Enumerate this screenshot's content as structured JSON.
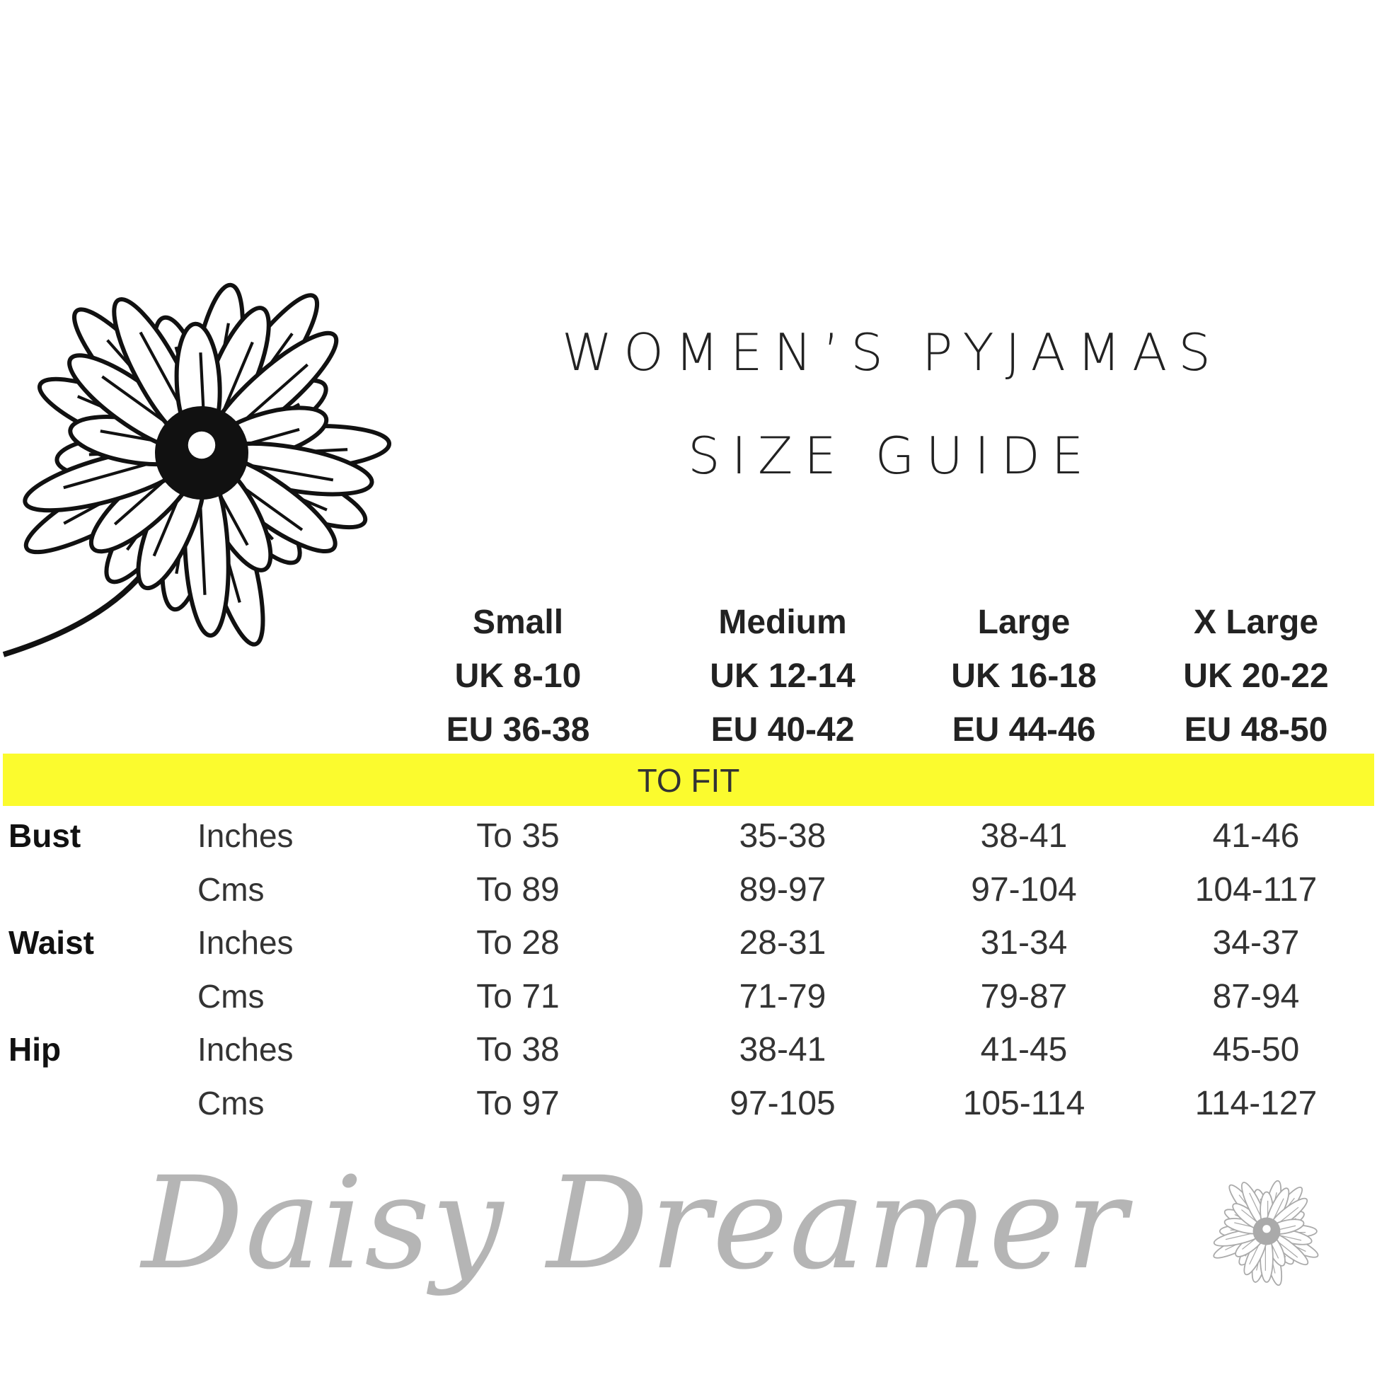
{
  "title": {
    "line1": "WOMEN’S PYJAMAS",
    "line2": "SIZE GUIDE"
  },
  "sizes": [
    {
      "name": "Small",
      "uk": "UK 8-10",
      "eu": "EU 36-38"
    },
    {
      "name": "Medium",
      "uk": "UK 12-14",
      "eu": "EU 40-42"
    },
    {
      "name": "Large",
      "uk": "UK 16-18",
      "eu": "EU 44-46"
    },
    {
      "name": "X Large",
      "uk": "UK 20-22",
      "eu": "EU 48-50"
    }
  ],
  "band": {
    "label": "TO FIT",
    "color": "#fbfb2e"
  },
  "rows": [
    {
      "measure": "Bust",
      "unit": "Inches",
      "values": [
        "To 35",
        "35-38",
        "38-41",
        "41-46"
      ]
    },
    {
      "measure": "",
      "unit": "Cms",
      "values": [
        "To 89",
        "89-97",
        "97-104",
        "104-117"
      ]
    },
    {
      "measure": "Waist",
      "unit": "Inches",
      "values": [
        "To 28",
        "28-31",
        "31-34",
        "34-37"
      ]
    },
    {
      "measure": "",
      "unit": "Cms",
      "values": [
        "To 71",
        "71-79",
        "79-87",
        "87-94"
      ]
    },
    {
      "measure": "Hip",
      "unit": "Inches",
      "values": [
        "To 38",
        "38-41",
        "41-45",
        "45-50"
      ]
    },
    {
      "measure": "",
      "unit": "Cms",
      "values": [
        "To 97",
        "97-105",
        "105-114",
        "114-127"
      ]
    }
  ],
  "watermark": "Daisy Dreamer",
  "icons": {
    "flower": "daisy-illustration",
    "watermark_flower": "daisy-icon"
  }
}
